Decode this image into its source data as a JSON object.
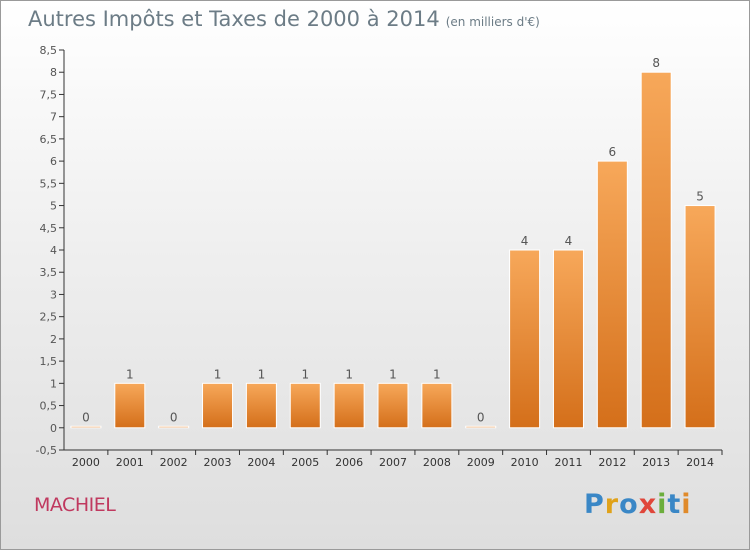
{
  "title": "Autres Impôts et Taxes de 2000 à 2014",
  "subtitle": "(en milliers d'€)",
  "place": "MACHIEL",
  "brand": "Proxiti",
  "colors": {
    "bar_light": "#f7a85a",
    "bar_dark": "#d46f1a",
    "axis": "#333333",
    "label": "#555555"
  },
  "chart_data": {
    "type": "bar",
    "title": "Autres Impôts et Taxes de 2000 à 2014",
    "subtitle": "(en milliers d'€)",
    "xlabel": "",
    "ylabel": "",
    "categories": [
      "2000",
      "2001",
      "2002",
      "2003",
      "2004",
      "2005",
      "2006",
      "2007",
      "2008",
      "2009",
      "2010",
      "2011",
      "2012",
      "2013",
      "2014"
    ],
    "values": [
      0,
      1,
      0,
      1,
      1,
      1,
      1,
      1,
      1,
      0,
      4,
      4,
      6,
      8,
      5
    ],
    "value_labels": [
      "0",
      "1",
      "0",
      "1",
      "1",
      "1",
      "1",
      "1",
      "1",
      "0",
      "4",
      "4",
      "6",
      "8",
      "5"
    ],
    "ylim": [
      -0.5,
      8.5
    ],
    "yticks": [
      -0.5,
      0,
      0.5,
      1,
      1.5,
      2,
      2.5,
      3,
      3.5,
      4,
      4.5,
      5,
      5.5,
      6,
      6.5,
      7,
      7.5,
      8,
      8.5
    ],
    "ytick_labels": [
      "-0,5",
      "0",
      "0,5",
      "1",
      "1,5",
      "2",
      "2,5",
      "3",
      "3,5",
      "4",
      "4,5",
      "5",
      "5,5",
      "6",
      "6,5",
      "7",
      "7,5",
      "8",
      "8,5"
    ],
    "grid": false,
    "legend": "none"
  }
}
